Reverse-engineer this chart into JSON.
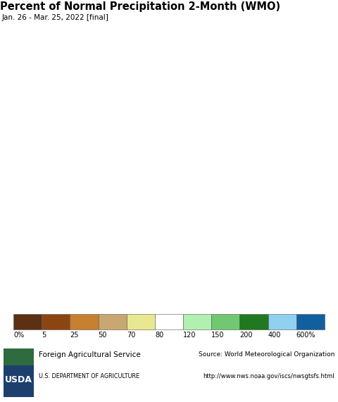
{
  "title": "Percent of Normal Precipitation 2-Month (WMO)",
  "subtitle": "Jan. 26 - Mar. 25, 2022 [final]",
  "colorbar_labels": [
    "0%",
    "5",
    "25",
    "50",
    "70",
    "80",
    "120",
    "150",
    "200",
    "400",
    "600%"
  ],
  "colorbar_colors": [
    "#5B3013",
    "#8B4513",
    "#C68030",
    "#C8A870",
    "#E8E890",
    "#FFFFFF",
    "#B0F0B0",
    "#70C870",
    "#207820",
    "#90D0F0",
    "#1060A0"
  ],
  "ocean_color": "#C8EAF0",
  "outside_land_color": "#E0E0E0",
  "footer_bg_color": "#F2F2F2",
  "map_extent": [
    57,
    108,
    4,
    43
  ],
  "source_text": "Source: World Meteorological Organization",
  "source_url": "http://www.nws.noaa.gov/iscs/nwsgtsfs.html",
  "fig_width": 4.8,
  "fig_height": 5.71,
  "dpi": 100,
  "title_fontsize": 10.5,
  "subtitle_fontsize": 7.5,
  "colorbar_label_fontsize": 7
}
